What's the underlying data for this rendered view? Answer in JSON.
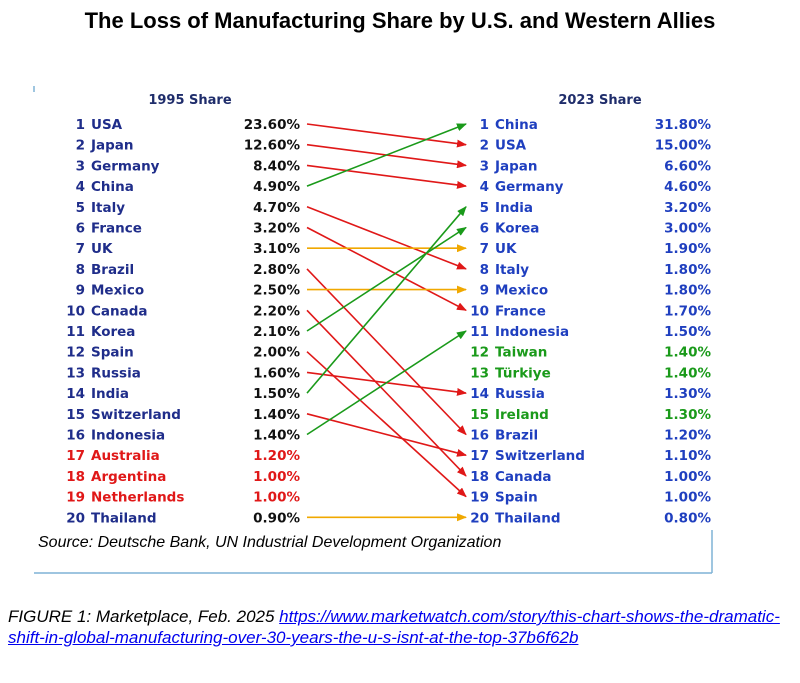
{
  "title": "The Loss of Manufacturing Share by U.S. and Western Allies",
  "chart_data": {
    "type": "slope",
    "left_header": "1995 Share",
    "right_header": "2023 Share",
    "left": [
      {
        "rank": "1",
        "country": "USA",
        "share": "23.60%",
        "color": "#1f2d8a"
      },
      {
        "rank": "2",
        "country": "Japan",
        "share": "12.60%",
        "color": "#1f2d8a"
      },
      {
        "rank": "3",
        "country": "Germany",
        "share": "8.40%",
        "color": "#1f2d8a"
      },
      {
        "rank": "4",
        "country": "China",
        "share": "4.90%",
        "color": "#1f2d8a"
      },
      {
        "rank": "5",
        "country": "Italy",
        "share": "4.70%",
        "color": "#1f2d8a"
      },
      {
        "rank": "6",
        "country": "France",
        "share": "3.20%",
        "color": "#1f2d8a"
      },
      {
        "rank": "7",
        "country": "UK",
        "share": "3.10%",
        "color": "#1f2d8a"
      },
      {
        "rank": "8",
        "country": "Brazil",
        "share": "2.80%",
        "color": "#1f2d8a"
      },
      {
        "rank": "9",
        "country": "Mexico",
        "share": "2.50%",
        "color": "#1f2d8a"
      },
      {
        "rank": "10",
        "country": "Canada",
        "share": "2.20%",
        "color": "#1f2d8a"
      },
      {
        "rank": "11",
        "country": "Korea",
        "share": "2.10%",
        "color": "#1f2d8a"
      },
      {
        "rank": "12",
        "country": "Spain",
        "share": "2.00%",
        "color": "#1f2d8a"
      },
      {
        "rank": "13",
        "country": "Russia",
        "share": "1.60%",
        "color": "#1f2d8a"
      },
      {
        "rank": "14",
        "country": "India",
        "share": "1.50%",
        "color": "#1f2d8a"
      },
      {
        "rank": "15",
        "country": "Switzerland",
        "share": "1.40%",
        "color": "#1f2d8a"
      },
      {
        "rank": "16",
        "country": "Indonesia",
        "share": "1.40%",
        "color": "#1f2d8a"
      },
      {
        "rank": "17",
        "country": "Australia",
        "share": "1.20%",
        "color": "#e01818"
      },
      {
        "rank": "18",
        "country": "Argentina",
        "share": "1.00%",
        "color": "#e01818"
      },
      {
        "rank": "19",
        "country": "Netherlands",
        "share": "1.00%",
        "color": "#e01818"
      },
      {
        "rank": "20",
        "country": "Thailand",
        "share": "0.90%",
        "color": "#1f2d8a"
      }
    ],
    "right": [
      {
        "rank": "1",
        "country": "China",
        "share": "31.80%",
        "color": "#1f3fbf"
      },
      {
        "rank": "2",
        "country": "USA",
        "share": "15.00%",
        "color": "#1f3fbf"
      },
      {
        "rank": "3",
        "country": "Japan",
        "share": "6.60%",
        "color": "#1f3fbf"
      },
      {
        "rank": "4",
        "country": "Germany",
        "share": "4.60%",
        "color": "#1f3fbf"
      },
      {
        "rank": "5",
        "country": "India",
        "share": "3.20%",
        "color": "#1f3fbf"
      },
      {
        "rank": "6",
        "country": "Korea",
        "share": "3.00%",
        "color": "#1f3fbf"
      },
      {
        "rank": "7",
        "country": "UK",
        "share": "1.90%",
        "color": "#1f3fbf"
      },
      {
        "rank": "8",
        "country": "Italy",
        "share": "1.80%",
        "color": "#1f3fbf"
      },
      {
        "rank": "9",
        "country": "Mexico",
        "share": "1.80%",
        "color": "#1f3fbf"
      },
      {
        "rank": "10",
        "country": "France",
        "share": "1.70%",
        "color": "#1f3fbf"
      },
      {
        "rank": "11",
        "country": "Indonesia",
        "share": "1.50%",
        "color": "#1f3fbf"
      },
      {
        "rank": "12",
        "country": "Taiwan",
        "share": "1.40%",
        "color": "#1a9a1a"
      },
      {
        "rank": "13",
        "country": "Türkiye",
        "share": "1.40%",
        "color": "#1a9a1a"
      },
      {
        "rank": "14",
        "country": "Russia",
        "share": "1.30%",
        "color": "#1f3fbf"
      },
      {
        "rank": "15",
        "country": "Ireland",
        "share": "1.30%",
        "color": "#1a9a1a"
      },
      {
        "rank": "16",
        "country": "Brazil",
        "share": "1.20%",
        "color": "#1f3fbf"
      },
      {
        "rank": "17",
        "country": "Switzerland",
        "share": "1.10%",
        "color": "#1f3fbf"
      },
      {
        "rank": "18",
        "country": "Canada",
        "share": "1.00%",
        "color": "#1f3fbf"
      },
      {
        "rank": "19",
        "country": "Spain",
        "share": "1.00%",
        "color": "#1f3fbf"
      },
      {
        "rank": "20",
        "country": "Thailand",
        "share": "0.80%",
        "color": "#1f3fbf"
      }
    ],
    "arrows": [
      {
        "from_rank": 1,
        "to_rank": 2,
        "color": "#e01818"
      },
      {
        "from_rank": 2,
        "to_rank": 3,
        "color": "#e01818"
      },
      {
        "from_rank": 3,
        "to_rank": 4,
        "color": "#e01818"
      },
      {
        "from_rank": 4,
        "to_rank": 1,
        "color": "#1a9a1a"
      },
      {
        "from_rank": 5,
        "to_rank": 8,
        "color": "#e01818"
      },
      {
        "from_rank": 6,
        "to_rank": 10,
        "color": "#e01818"
      },
      {
        "from_rank": 7,
        "to_rank": 7,
        "color": "#f0a800"
      },
      {
        "from_rank": 8,
        "to_rank": 16,
        "color": "#e01818"
      },
      {
        "from_rank": 9,
        "to_rank": 9,
        "color": "#f0a800"
      },
      {
        "from_rank": 10,
        "to_rank": 18,
        "color": "#e01818"
      },
      {
        "from_rank": 11,
        "to_rank": 6,
        "color": "#1a9a1a"
      },
      {
        "from_rank": 12,
        "to_rank": 19,
        "color": "#e01818"
      },
      {
        "from_rank": 13,
        "to_rank": 14,
        "color": "#e01818"
      },
      {
        "from_rank": 14,
        "to_rank": 5,
        "color": "#1a9a1a"
      },
      {
        "from_rank": 15,
        "to_rank": 17,
        "color": "#e01818"
      },
      {
        "from_rank": 16,
        "to_rank": 11,
        "color": "#1a9a1a"
      },
      {
        "from_rank": 20,
        "to_rank": 20,
        "color": "#f0a800"
      }
    ],
    "source": "Source: Deutsche Bank, UN Industrial Development Organization"
  },
  "caption": {
    "prefix": "FIGURE 1: Marketplace, Feb. 2025 ",
    "link": "https://www.marketwatch.com/story/this-chart-shows-the-dramatic-shift-in-global-manufacturing-over-30-years-the-u-s-isnt-at-the-top-37b6f62b"
  }
}
